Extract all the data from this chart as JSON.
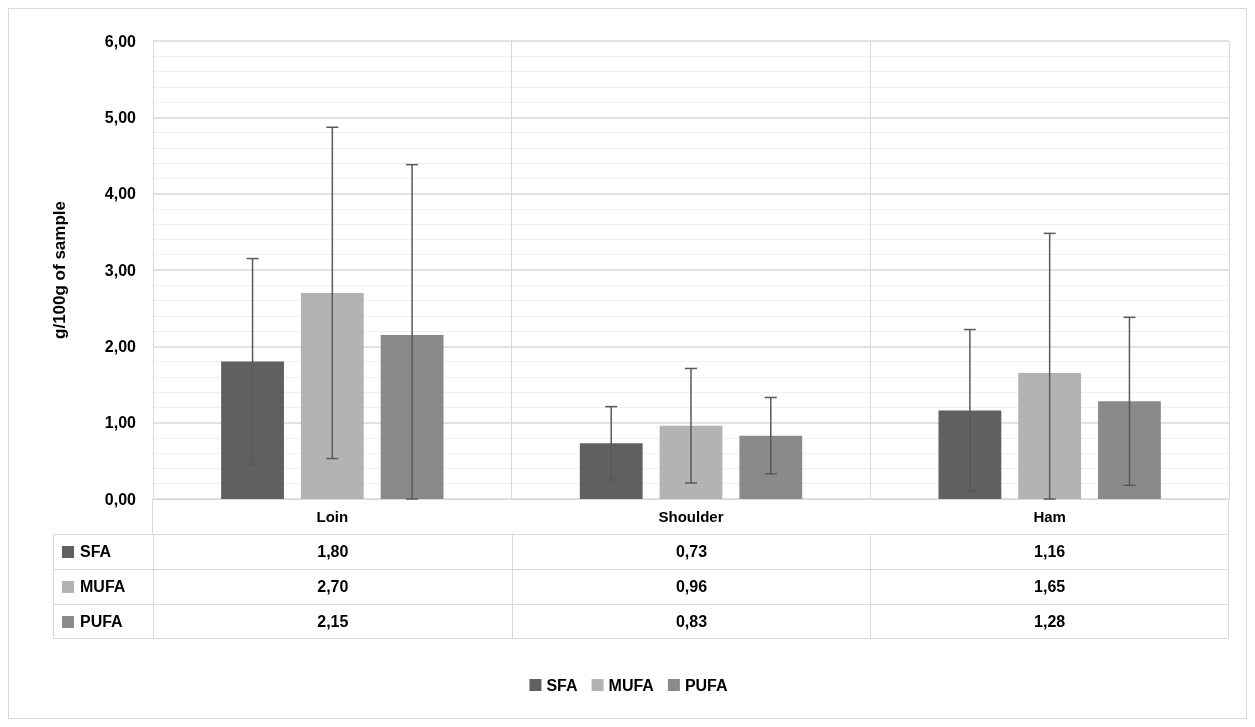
{
  "chart_data": {
    "type": "bar",
    "ylabel": "g/100g of sample",
    "categories": [
      "Loin",
      "Shoulder",
      "Ham"
    ],
    "series": [
      {
        "name": "SFA",
        "color": "#606060",
        "values": [
          1.8,
          0.73,
          1.16
        ],
        "value_labels": [
          "1,80",
          "0,73",
          "1,16"
        ],
        "errors": [
          1.35,
          0.48,
          1.06
        ]
      },
      {
        "name": "MUFA",
        "color": "#b3b3b3",
        "values": [
          2.7,
          0.96,
          1.65
        ],
        "value_labels": [
          "2,70",
          "0,96",
          "1,65"
        ],
        "errors": [
          2.17,
          0.75,
          [
            0,
            3.48
          ]
        ]
      },
      {
        "name": "PUFA",
        "color": "#8a8a8a",
        "values": [
          2.15,
          0.83,
          1.28
        ],
        "value_labels": [
          "2,15",
          "0,83",
          "1,28"
        ],
        "errors": [
          [
            0,
            4.38
          ],
          0.5,
          1.1
        ]
      }
    ],
    "ylim": [
      0,
      6
    ],
    "yticks": [
      {
        "value": 0,
        "label": "0,00"
      },
      {
        "value": 1,
        "label": "1,00"
      },
      {
        "value": 2,
        "label": "2,00"
      },
      {
        "value": 3,
        "label": "3,00"
      },
      {
        "value": 4,
        "label": "4,00"
      },
      {
        "value": 5,
        "label": "5,00"
      },
      {
        "value": 6,
        "label": "6,00"
      }
    ],
    "grid": true,
    "legend": "bottom"
  }
}
